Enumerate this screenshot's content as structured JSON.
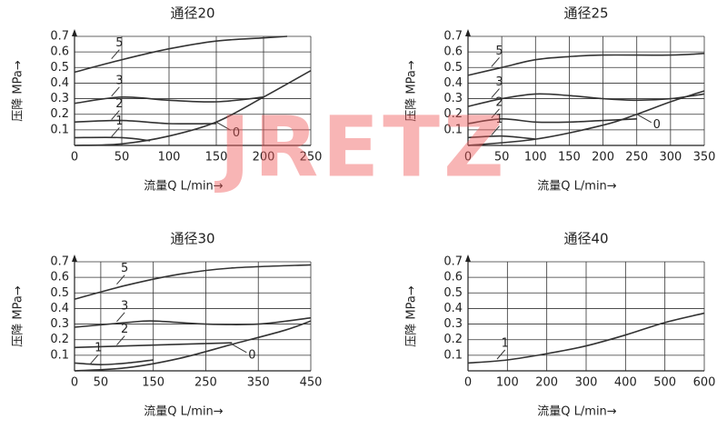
{
  "watermark": "JRETZ",
  "chart_data": [
    {
      "type": "line",
      "title": "通径20",
      "x_label": "流量Q  L/min→",
      "y_label": "压降 MPa→",
      "color": "#333333",
      "xlim": [
        0,
        250
      ],
      "xticks": [
        0,
        50,
        100,
        150,
        200,
        250
      ],
      "ylim": [
        0,
        0.7
      ],
      "yticks": [
        0.1,
        0.2,
        0.3,
        0.4,
        0.5,
        0.6,
        0.7
      ],
      "grid": true,
      "series": [
        {
          "name": "5",
          "x": [
            0,
            50,
            100,
            150,
            200,
            225
          ],
          "values": [
            0.47,
            0.55,
            0.62,
            0.67,
            0.69,
            0.7
          ]
        },
        {
          "name": "3",
          "x": [
            0,
            50,
            100,
            150,
            200
          ],
          "values": [
            0.27,
            0.31,
            0.29,
            0.28,
            0.31
          ]
        },
        {
          "name": "2",
          "x": [
            0,
            50,
            100,
            150
          ],
          "values": [
            0.15,
            0.16,
            0.14,
            0.14
          ]
        },
        {
          "name": "1",
          "x": [
            0,
            50,
            80
          ],
          "values": [
            0.05,
            0.05,
            0.03
          ]
        },
        {
          "name": "0",
          "x": [
            0,
            50,
            100,
            150,
            200,
            250
          ],
          "values": [
            0,
            0.01,
            0.06,
            0.15,
            0.31,
            0.48
          ]
        }
      ]
    },
    {
      "type": "line",
      "title": "通径25",
      "x_label": "流量Q  L/min→",
      "y_label": "压降 MPa→",
      "color": "#333333",
      "xlim": [
        0,
        350
      ],
      "xticks": [
        0,
        50,
        100,
        150,
        200,
        250,
        300,
        350
      ],
      "ylim": [
        0,
        0.7
      ],
      "yticks": [
        0.1,
        0.2,
        0.3,
        0.4,
        0.5,
        0.6,
        0.7
      ],
      "grid": true,
      "series": [
        {
          "name": "5",
          "x": [
            0,
            50,
            100,
            150,
            200,
            300,
            350
          ],
          "values": [
            0.45,
            0.5,
            0.55,
            0.57,
            0.58,
            0.58,
            0.59
          ]
        },
        {
          "name": "3",
          "x": [
            0,
            50,
            100,
            150,
            200,
            250,
            300,
            350
          ],
          "values": [
            0.25,
            0.3,
            0.33,
            0.32,
            0.3,
            0.29,
            0.3,
            0.33
          ]
        },
        {
          "name": "2",
          "x": [
            0,
            50,
            100,
            150,
            200,
            250
          ],
          "values": [
            0.14,
            0.17,
            0.15,
            0.15,
            0.16,
            0.17
          ]
        },
        {
          "name": "1",
          "x": [
            0,
            50,
            100
          ],
          "values": [
            0.05,
            0.06,
            0.04
          ]
        },
        {
          "name": "0",
          "x": [
            0,
            100,
            200,
            250,
            300,
            350
          ],
          "values": [
            0,
            0.04,
            0.13,
            0.2,
            0.28,
            0.35
          ]
        }
      ]
    },
    {
      "type": "line",
      "title": "通径30",
      "x_label": "流量Q  L/min→",
      "y_label": "压降 MPa→",
      "color": "#333333",
      "xlim": [
        0,
        450
      ],
      "xticks": [
        0,
        50,
        150,
        250,
        350,
        450
      ],
      "ylim": [
        0,
        0.7
      ],
      "yticks": [
        0.1,
        0.2,
        0.3,
        0.4,
        0.5,
        0.6,
        0.7
      ],
      "grid": true,
      "series": [
        {
          "name": "5",
          "x": [
            0,
            100,
            200,
            300,
            450
          ],
          "values": [
            0.46,
            0.55,
            0.62,
            0.66,
            0.68
          ]
        },
        {
          "name": "3",
          "x": [
            0,
            100,
            150,
            250,
            350,
            450
          ],
          "values": [
            0.28,
            0.31,
            0.32,
            0.3,
            0.3,
            0.34
          ]
        },
        {
          "name": "2",
          "x": [
            0,
            100,
            200,
            300
          ],
          "values": [
            0.15,
            0.16,
            0.17,
            0.18
          ]
        },
        {
          "name": "1",
          "x": [
            0,
            50,
            100,
            150
          ],
          "values": [
            0.05,
            0.04,
            0.05,
            0.07
          ]
        },
        {
          "name": "0",
          "x": [
            0,
            100,
            200,
            300,
            400,
            450
          ],
          "values": [
            0,
            0.02,
            0.08,
            0.17,
            0.26,
            0.32
          ]
        }
      ]
    },
    {
      "type": "line",
      "title": "通径40",
      "x_label": "流量Q  L/min→",
      "y_label": "压降 MPa→",
      "color": "#333333",
      "xlim": [
        0,
        600
      ],
      "xticks": [
        0,
        100,
        200,
        300,
        400,
        500,
        600
      ],
      "ylim": [
        0,
        0.7
      ],
      "yticks": [
        0.1,
        0.2,
        0.3,
        0.4,
        0.5,
        0.6,
        0.7
      ],
      "grid": true,
      "series": [
        {
          "name": "1",
          "x": [
            0,
            100,
            200,
            300,
            400,
            500,
            600
          ],
          "values": [
            0.05,
            0.07,
            0.11,
            0.16,
            0.23,
            0.31,
            0.37
          ]
        }
      ]
    }
  ]
}
